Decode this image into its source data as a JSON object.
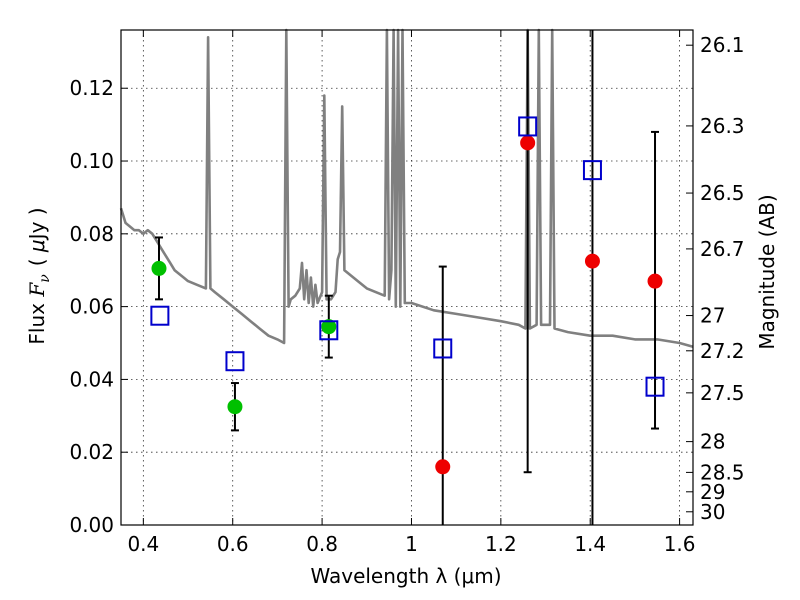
{
  "chart_data": {
    "type": "scatter",
    "xlabel": "Wavelength  λ (μm)",
    "ylabel": "Flux  F_ν  ( μJy )",
    "ylabel_parts": {
      "prefix": "Flux  ",
      "var": "F",
      "sub": "ν",
      "open": "( ",
      "unit": "μ",
      "unit_rest": "Jy )"
    },
    "y2label": "Magnitude (AB)",
    "xlim": [
      0.35,
      1.63
    ],
    "ylim": [
      0.0,
      0.136
    ],
    "grid": true,
    "x_ticks": [
      {
        "value": 0.4,
        "label": "0.4"
      },
      {
        "value": 0.6,
        "label": "0.6"
      },
      {
        "value": 0.8,
        "label": "0.8"
      },
      {
        "value": 1.0,
        "label": "1"
      },
      {
        "value": 1.2,
        "label": "1.2"
      },
      {
        "value": 1.4,
        "label": "1.4"
      },
      {
        "value": 1.6,
        "label": "1.6"
      }
    ],
    "y_ticks": [
      {
        "value": 0.0,
        "label": "0.00"
      },
      {
        "value": 0.02,
        "label": "0.02"
      },
      {
        "value": 0.04,
        "label": "0.04"
      },
      {
        "value": 0.06,
        "label": "0.06"
      },
      {
        "value": 0.08,
        "label": "0.08"
      },
      {
        "value": 0.1,
        "label": "0.10"
      },
      {
        "value": 0.12,
        "label": "0.12"
      }
    ],
    "mag_ticks": [
      {
        "value": 26.1,
        "label": "26.1"
      },
      {
        "value": 26.3,
        "label": "26.3"
      },
      {
        "value": 26.5,
        "label": "26.5"
      },
      {
        "value": 26.7,
        "label": "26.7"
      },
      {
        "value": 27.0,
        "label": "27"
      },
      {
        "value": 27.2,
        "label": "27.2"
      },
      {
        "value": 27.5,
        "label": "27.5"
      },
      {
        "value": 28.0,
        "label": "28"
      },
      {
        "value": 28.5,
        "label": "28.5"
      },
      {
        "value": 29.0,
        "label": "29"
      },
      {
        "value": 30.0,
        "label": "30"
      }
    ],
    "sed_model": {
      "color": "#808080",
      "points": [
        [
          0.35,
          0.087
        ],
        [
          0.36,
          0.083
        ],
        [
          0.37,
          0.082
        ],
        [
          0.38,
          0.081
        ],
        [
          0.39,
          0.081
        ],
        [
          0.4,
          0.08
        ],
        [
          0.41,
          0.081
        ],
        [
          0.42,
          0.08
        ],
        [
          0.43,
          0.078
        ],
        [
          0.44,
          0.076
        ],
        [
          0.45,
          0.074
        ],
        [
          0.46,
          0.072
        ],
        [
          0.47,
          0.07
        ],
        [
          0.48,
          0.069
        ],
        [
          0.49,
          0.068
        ],
        [
          0.5,
          0.067
        ],
        [
          0.52,
          0.066
        ],
        [
          0.54,
          0.065
        ],
        [
          0.545,
          0.134
        ],
        [
          0.55,
          0.065
        ],
        [
          0.56,
          0.064
        ],
        [
          0.58,
          0.062
        ],
        [
          0.6,
          0.06
        ],
        [
          0.62,
          0.058
        ],
        [
          0.64,
          0.056
        ],
        [
          0.66,
          0.054
        ],
        [
          0.68,
          0.052
        ],
        [
          0.7,
          0.051
        ],
        [
          0.715,
          0.05
        ],
        [
          0.72,
          0.136
        ],
        [
          0.725,
          0.06
        ],
        [
          0.73,
          0.062
        ],
        [
          0.74,
          0.063
        ],
        [
          0.75,
          0.065
        ],
        [
          0.755,
          0.072
        ],
        [
          0.76,
          0.062
        ],
        [
          0.765,
          0.07
        ],
        [
          0.77,
          0.061
        ],
        [
          0.775,
          0.068
        ],
        [
          0.78,
          0.06
        ],
        [
          0.785,
          0.066
        ],
        [
          0.79,
          0.061
        ],
        [
          0.8,
          0.064
        ],
        [
          0.805,
          0.118
        ],
        [
          0.81,
          0.062
        ],
        [
          0.82,
          0.062
        ],
        [
          0.83,
          0.064
        ],
        [
          0.835,
          0.073
        ],
        [
          0.84,
          0.075
        ],
        [
          0.845,
          0.115
        ],
        [
          0.85,
          0.07
        ],
        [
          0.86,
          0.069
        ],
        [
          0.88,
          0.067
        ],
        [
          0.9,
          0.065
        ],
        [
          0.92,
          0.064
        ],
        [
          0.94,
          0.063
        ],
        [
          0.945,
          0.136
        ],
        [
          0.95,
          0.062
        ],
        [
          0.955,
          0.07
        ],
        [
          0.96,
          0.136
        ],
        [
          0.965,
          0.06
        ],
        [
          0.97,
          0.136
        ],
        [
          0.975,
          0.06
        ],
        [
          0.98,
          0.136
        ],
        [
          0.985,
          0.061
        ],
        [
          1.0,
          0.061
        ],
        [
          1.05,
          0.059
        ],
        [
          1.1,
          0.058
        ],
        [
          1.15,
          0.057
        ],
        [
          1.2,
          0.056
        ],
        [
          1.24,
          0.055
        ],
        [
          1.255,
          0.054
        ],
        [
          1.26,
          0.136
        ],
        [
          1.265,
          0.054
        ],
        [
          1.28,
          0.055
        ],
        [
          1.285,
          0.136
        ],
        [
          1.29,
          0.055
        ],
        [
          1.3,
          0.055
        ],
        [
          1.31,
          0.055
        ],
        [
          1.315,
          0.136
        ],
        [
          1.32,
          0.054
        ],
        [
          1.35,
          0.053
        ],
        [
          1.4,
          0.052
        ],
        [
          1.45,
          0.052
        ],
        [
          1.5,
          0.051
        ],
        [
          1.55,
          0.051
        ],
        [
          1.6,
          0.05
        ],
        [
          1.63,
          0.049
        ]
      ]
    },
    "series": [
      {
        "marker": "circle-filled",
        "color": "#00c000",
        "points": [
          {
            "x": 0.435,
            "y": 0.0705,
            "yerr_low": 0.062,
            "yerr_high": 0.079
          },
          {
            "x": 0.605,
            "y": 0.0325,
            "yerr_low": 0.026,
            "yerr_high": 0.039
          },
          {
            "x": 0.815,
            "y": 0.0545,
            "yerr_low": 0.046,
            "yerr_high": 0.063
          }
        ]
      },
      {
        "marker": "circle-filled",
        "color": "#ee0000",
        "points": [
          {
            "x": 1.07,
            "y": 0.016,
            "yerr_low": 0.0,
            "yerr_high": 0.071
          },
          {
            "x": 1.26,
            "y": 0.105,
            "yerr_low": 0.0145,
            "yerr_high": 0.136
          },
          {
            "x": 1.405,
            "y": 0.0725,
            "yerr_low": 0.0,
            "yerr_high": 0.136
          },
          {
            "x": 1.545,
            "y": 0.067,
            "yerr_low": 0.0265,
            "yerr_high": 0.108
          }
        ]
      },
      {
        "marker": "square-open",
        "color": "#0000cc",
        "points": [
          {
            "x": 0.437,
            "y": 0.0575
          },
          {
            "x": 0.605,
            "y": 0.045
          },
          {
            "x": 0.815,
            "y": 0.0535
          },
          {
            "x": 1.07,
            "y": 0.0485
          },
          {
            "x": 1.26,
            "y": 0.1095
          },
          {
            "x": 1.405,
            "y": 0.0975
          },
          {
            "x": 1.545,
            "y": 0.038
          }
        ]
      }
    ]
  }
}
